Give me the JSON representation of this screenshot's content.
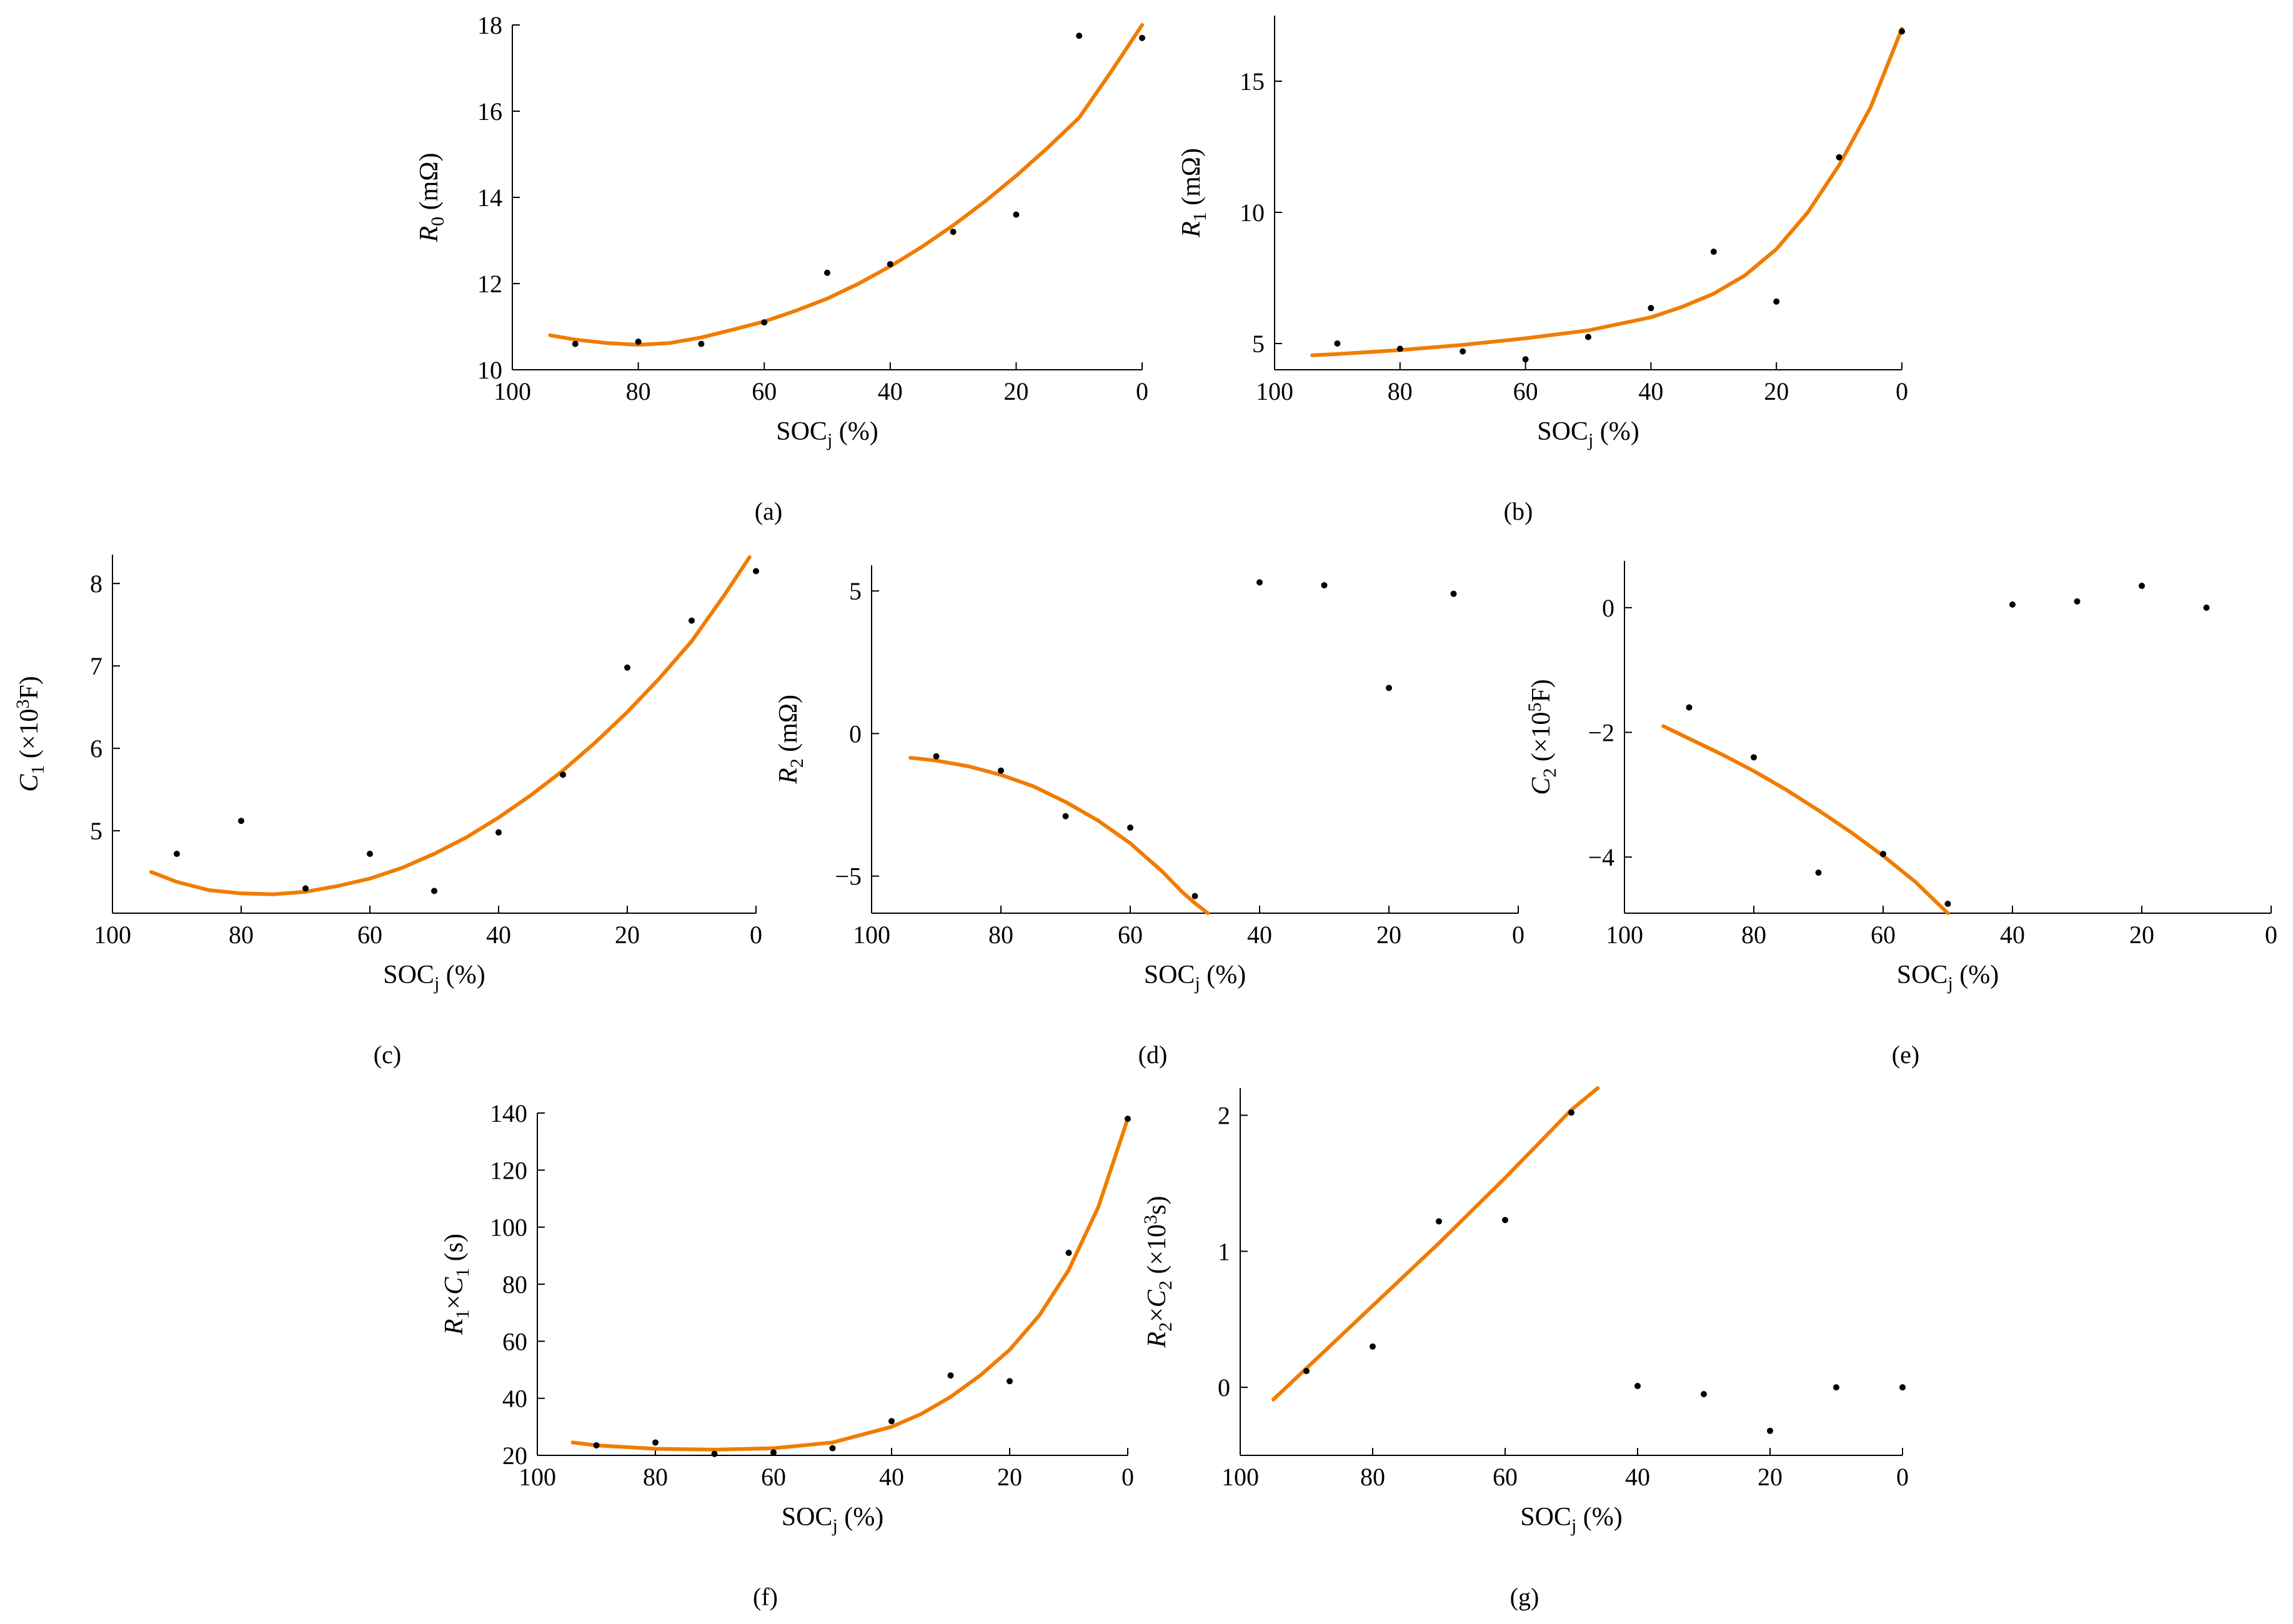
{
  "chart_data": [
    {
      "type": "scatter",
      "caption": "(a)",
      "ylabel": {
        "main": "R",
        "sub": "0",
        "rest": " (mΩ)"
      },
      "xlabel": {
        "main": "SOC",
        "sub": "j",
        "rest": " (%)"
      },
      "xlim": [
        100,
        0
      ],
      "xticks": [
        100,
        80,
        60,
        40,
        20,
        0
      ],
      "ylim": [
        10,
        18
      ],
      "yticks": [
        10,
        12,
        14,
        16,
        18
      ],
      "points": {
        "x": [
          90,
          80,
          70,
          60,
          50,
          40,
          30,
          20,
          10,
          0
        ],
        "y": [
          10.6,
          10.65,
          10.6,
          11.1,
          12.25,
          12.45,
          13.2,
          13.6,
          17.75,
          17.7
        ]
      },
      "fit": {
        "x": [
          94,
          90,
          85,
          80,
          75,
          70,
          65,
          60,
          55,
          50,
          45,
          40,
          35,
          30,
          25,
          20,
          15,
          10,
          5,
          0
        ],
        "y": [
          10.8,
          10.7,
          10.62,
          10.58,
          10.62,
          10.75,
          10.93,
          11.12,
          11.37,
          11.65,
          12.0,
          12.4,
          12.85,
          13.35,
          13.9,
          14.5,
          15.15,
          15.85,
          16.9,
          18.0
        ]
      }
    },
    {
      "type": "scatter",
      "caption": "(b)",
      "ylabel": {
        "main": "R",
        "sub": "1",
        "rest": " (mΩ)"
      },
      "xlabel": {
        "main": "SOC",
        "sub": "j",
        "rest": " (%)"
      },
      "xlim": [
        100,
        0
      ],
      "xticks": [
        100,
        80,
        60,
        40,
        20,
        0
      ],
      "ylim": [
        4,
        17.5
      ],
      "yticks": [
        5,
        10,
        15
      ],
      "points": {
        "x": [
          90,
          80,
          70,
          60,
          50,
          40,
          30,
          20,
          10,
          0
        ],
        "y": [
          5.0,
          4.8,
          4.7,
          4.4,
          5.25,
          6.35,
          8.5,
          6.6,
          12.1,
          16.9
        ]
      },
      "fit": {
        "x": [
          94,
          90,
          80,
          70,
          60,
          50,
          40,
          35,
          30,
          25,
          20,
          15,
          10,
          5,
          0
        ],
        "y": [
          4.55,
          4.6,
          4.75,
          4.95,
          5.2,
          5.5,
          6.0,
          6.4,
          6.9,
          7.6,
          8.6,
          10.0,
          11.8,
          14.0,
          17.0
        ]
      }
    },
    {
      "type": "scatter",
      "caption": "(c)",
      "ylabel": {
        "main": "C",
        "sub": "1",
        "rest": " (×10",
        "sup": "3",
        "rest2": "F)"
      },
      "xlabel": {
        "main": "SOC",
        "sub": "j",
        "rest": " (%)"
      },
      "xlim": [
        100,
        0
      ],
      "xticks": [
        100,
        80,
        60,
        40,
        20,
        0
      ],
      "ylim": [
        4,
        8.35
      ],
      "yticks": [
        5,
        6,
        7,
        8
      ],
      "points": {
        "x": [
          90,
          80,
          70,
          60,
          50,
          40,
          30,
          20,
          10,
          0
        ],
        "y": [
          4.72,
          5.12,
          4.3,
          4.72,
          4.27,
          4.98,
          5.68,
          6.98,
          7.55,
          8.15
        ]
      },
      "fit": {
        "x": [
          94,
          90,
          85,
          80,
          75,
          70,
          65,
          60,
          55,
          50,
          45,
          40,
          35,
          30,
          25,
          20,
          15,
          10,
          5,
          1
        ],
        "y": [
          4.5,
          4.38,
          4.28,
          4.24,
          4.23,
          4.26,
          4.33,
          4.42,
          4.55,
          4.72,
          4.92,
          5.16,
          5.43,
          5.73,
          6.07,
          6.44,
          6.85,
          7.3,
          7.85,
          8.32
        ]
      }
    },
    {
      "type": "scatter",
      "caption": "(d)",
      "ylabel": {
        "main": "R",
        "sub": "2",
        "rest": " (mΩ)"
      },
      "xlabel": {
        "main": "SOC",
        "sub": "j",
        "rest": " (%)"
      },
      "xlim": [
        100,
        0
      ],
      "xticks": [
        100,
        80,
        60,
        40,
        20,
        0
      ],
      "ylim": [
        -6.3,
        5.9
      ],
      "yticks": [
        -5,
        0,
        5
      ],
      "points": {
        "x": [
          90,
          80,
          70,
          60,
          50,
          40,
          30,
          20,
          10
        ],
        "y": [
          -0.8,
          -1.3,
          -2.9,
          -3.3,
          -5.7,
          5.3,
          5.2,
          1.6,
          4.9
        ]
      },
      "fit": {
        "x": [
          94,
          90,
          85,
          80,
          75,
          70,
          65,
          60,
          55,
          52,
          50,
          48
        ],
        "y": [
          -0.85,
          -0.95,
          -1.15,
          -1.45,
          -1.85,
          -2.4,
          -3.05,
          -3.85,
          -4.85,
          -5.55,
          -5.95,
          -6.3
        ]
      }
    },
    {
      "type": "scatter",
      "caption": "(e)",
      "ylabel": {
        "main": "C",
        "sub": "2",
        "rest": " (×10",
        "sup": "5",
        "rest2": "F)"
      },
      "xlabel": {
        "main": "SOC",
        "sub": "j",
        "rest": " (%)"
      },
      "xlim": [
        100,
        0
      ],
      "xticks": [
        100,
        80,
        60,
        40,
        20,
        0
      ],
      "ylim": [
        -4.9,
        0.75
      ],
      "yticks": [
        -4,
        -2,
        0
      ],
      "points": {
        "x": [
          90,
          80,
          70,
          60,
          50,
          40,
          30,
          20,
          10
        ],
        "y": [
          -1.6,
          -2.4,
          -4.25,
          -3.95,
          -4.75,
          0.05,
          0.1,
          0.35,
          0.0
        ]
      },
      "fit": {
        "x": [
          94,
          90,
          85,
          80,
          75,
          70,
          65,
          60,
          55,
          52,
          50
        ],
        "y": [
          -1.9,
          -2.1,
          -2.35,
          -2.62,
          -2.92,
          -3.25,
          -3.6,
          -3.98,
          -4.4,
          -4.7,
          -4.9
        ]
      }
    },
    {
      "type": "scatter",
      "caption": "(f)",
      "ylabel": {
        "main": "R",
        "sub": "1",
        "mid": "×",
        "main2": "C",
        "sub2": "1",
        "rest": " (s)"
      },
      "xlabel": {
        "main": "SOC",
        "sub": "j",
        "rest": " (%)"
      },
      "xlim": [
        100,
        0
      ],
      "xticks": [
        100,
        80,
        60,
        40,
        20,
        0
      ],
      "ylim": [
        20,
        140
      ],
      "yticks": [
        20,
        40,
        60,
        80,
        100,
        120,
        140
      ],
      "points": {
        "x": [
          90,
          80,
          70,
          60,
          50,
          40,
          30,
          20,
          10,
          0
        ],
        "y": [
          23.5,
          24.5,
          20.5,
          21.0,
          22.5,
          32,
          48,
          46,
          91,
          138
        ]
      },
      "fit": {
        "x": [
          94,
          90,
          80,
          70,
          60,
          50,
          40,
          35,
          30,
          25,
          20,
          15,
          10,
          5,
          0
        ],
        "y": [
          24.5,
          23.5,
          22.3,
          22.0,
          22.5,
          24.5,
          30,
          34.5,
          40.5,
          48,
          57,
          69,
          85,
          107,
          138
        ]
      }
    },
    {
      "type": "scatter",
      "caption": "(g)",
      "ylabel": {
        "main": "R",
        "sub": "2",
        "mid": "×",
        "main2": "C",
        "sub2": "2",
        "rest": " (×10",
        "sup": "3",
        "rest2": "s)"
      },
      "xlabel": {
        "main": "SOC",
        "sub": "j",
        "rest": " (%)"
      },
      "xlim": [
        100,
        0
      ],
      "xticks": [
        100,
        80,
        60,
        40,
        20,
        0
      ],
      "ylim": [
        -0.5,
        2.2
      ],
      "yticks": [
        0,
        1,
        2
      ],
      "points": {
        "x": [
          90,
          80,
          70,
          60,
          50,
          40,
          30,
          20,
          10,
          0
        ],
        "y": [
          0.12,
          0.3,
          1.22,
          1.23,
          2.02,
          0.01,
          -0.05,
          -0.32,
          0.0,
          0.0
        ]
      },
      "fit": {
        "x": [
          95,
          90,
          85,
          80,
          75,
          70,
          65,
          60,
          55,
          50,
          46
        ],
        "y": [
          -0.09,
          0.14,
          0.37,
          0.6,
          0.83,
          1.06,
          1.3,
          1.54,
          1.79,
          2.04,
          2.2
        ]
      }
    }
  ]
}
